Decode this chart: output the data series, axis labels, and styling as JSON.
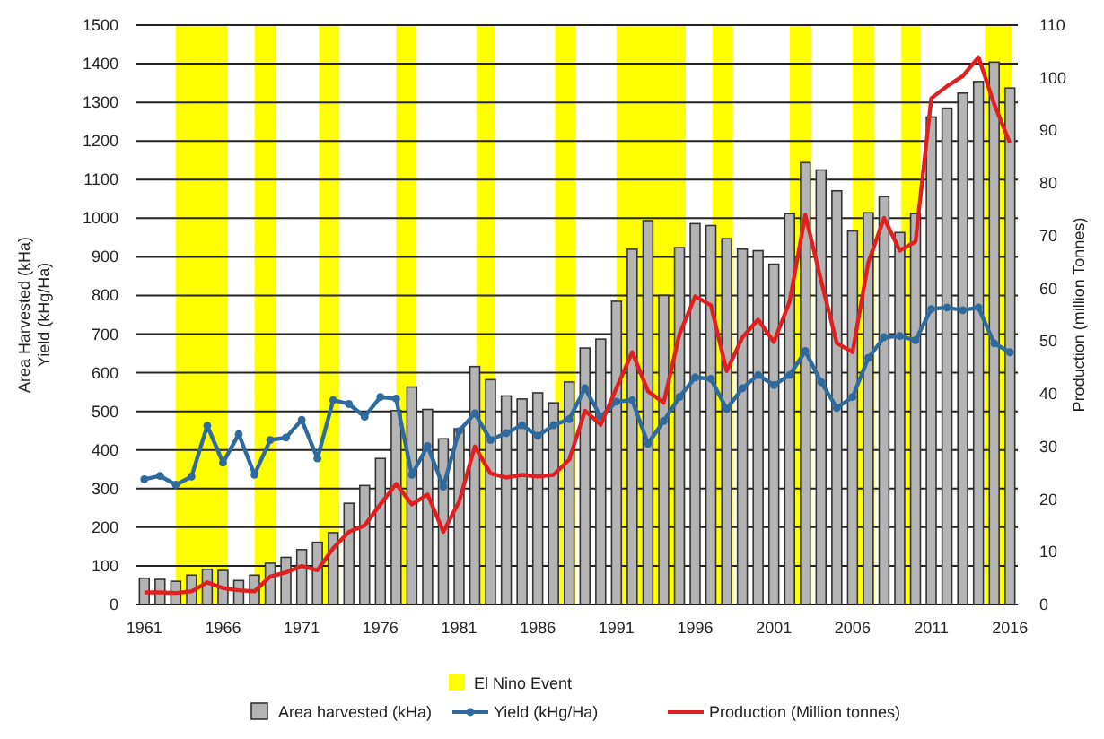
{
  "chart_data": {
    "type": "bar",
    "ylabel": "Area Harvested (kHa)\nYield (kHg/Ha)",
    "y2label": "Production (million Tonnes)",
    "x": [
      1961,
      1962,
      1963,
      1964,
      1965,
      1966,
      1967,
      1968,
      1969,
      1970,
      1971,
      1972,
      1973,
      1974,
      1975,
      1976,
      1977,
      1978,
      1979,
      1980,
      1981,
      1982,
      1983,
      1984,
      1985,
      1986,
      1987,
      1988,
      1989,
      1990,
      1991,
      1992,
      1993,
      1994,
      1995,
      1996,
      1997,
      1998,
      1999,
      2000,
      2001,
      2002,
      2003,
      2004,
      2005,
      2006,
      2007,
      2008,
      2009,
      2010,
      2011,
      2012,
      2013,
      2014,
      2015,
      2016
    ],
    "xlim": [
      1960.5,
      2016.5
    ],
    "xticks": [
      1961,
      1966,
      1971,
      1976,
      1981,
      1986,
      1991,
      1996,
      2001,
      2006,
      2011,
      2016
    ],
    "ylim": [
      0,
      1500
    ],
    "yticks": [
      0,
      100,
      200,
      300,
      400,
      500,
      600,
      700,
      800,
      900,
      1000,
      1100,
      1200,
      1300,
      1400,
      1500
    ],
    "y2lim": [
      0,
      110
    ],
    "y2ticks": [
      0,
      10,
      20,
      30,
      40,
      50,
      60,
      70,
      80,
      90,
      100,
      110
    ],
    "grid": "y",
    "legend": "bottom",
    "series": [
      {
        "name": "Area harvested (kHa)",
        "color": "#b4b4b4",
        "values": [
          68,
          65,
          60,
          76,
          91,
          88,
          62,
          76,
          107,
          122,
          142,
          161,
          186,
          262,
          308,
          378,
          502,
          563,
          505,
          429,
          455,
          616,
          582,
          540,
          532,
          548,
          522,
          576,
          664,
          687,
          785,
          920,
          994,
          800,
          924,
          986,
          981,
          947,
          920,
          916,
          881,
          1012,
          1144,
          1125,
          1071,
          967,
          1014,
          1056,
          963,
          1012,
          1262,
          1285,
          1324,
          1354,
          1404,
          1337
        ]
      },
      {
        "name": "Yield (kHg/Ha)",
        "type": "line",
        "marker": "circle",
        "color": "#2e6a9e",
        "values": [
          324,
          333,
          310,
          331,
          463,
          367,
          441,
          336,
          426,
          432,
          478,
          378,
          529,
          519,
          486,
          537,
          533,
          336,
          410,
          305,
          449,
          495,
          426,
          444,
          464,
          437,
          464,
          480,
          560,
          486,
          525,
          529,
          416,
          475,
          537,
          588,
          584,
          506,
          560,
          594,
          568,
          594,
          656,
          576,
          509,
          537,
          638,
          692,
          695,
          684,
          765,
          769,
          762,
          769,
          676,
          653
        ]
      },
      {
        "name": "Production (Million tonnes)",
        "type": "line",
        "axis": "y2",
        "color": "#e02020",
        "values": [
          2.3,
          2.3,
          2.2,
          2.5,
          4.2,
          3.1,
          2.7,
          2.5,
          5.3,
          6.1,
          7.3,
          6.5,
          10.7,
          13.8,
          15,
          19,
          22.9,
          19,
          20.9,
          13.8,
          19.5,
          30,
          24.9,
          24.1,
          24.6,
          24.3,
          24.6,
          27.5,
          36.8,
          34.1,
          41.1,
          47.9,
          40.5,
          38.3,
          51.3,
          58.5,
          56.8,
          44.3,
          50.7,
          54.1,
          49.8,
          57.5,
          74,
          61.5,
          49.6,
          47.9,
          64.9,
          73.4,
          67.2,
          68.9,
          96.1,
          98.4,
          100.3,
          103.9,
          95,
          87.6
        ]
      }
    ],
    "bands": [
      {
        "axis": "x",
        "from": 1963,
        "to": 1966.3,
        "color": "#ffff00",
        "label": "El Nino Event"
      },
      {
        "axis": "x",
        "from": 1968,
        "to": 1969.4,
        "color": "#ffff00"
      },
      {
        "axis": "x",
        "from": 1972.1,
        "to": 1973.4,
        "color": "#ffff00"
      },
      {
        "axis": "x",
        "from": 1977,
        "to": 1978.3,
        "color": "#ffff00"
      },
      {
        "axis": "x",
        "from": 1982.1,
        "to": 1983.3,
        "color": "#ffff00"
      },
      {
        "axis": "x",
        "from": 1987.1,
        "to": 1988.4,
        "color": "#ffff00"
      },
      {
        "axis": "x",
        "from": 1991,
        "to": 1995.4,
        "color": "#ffff00"
      },
      {
        "axis": "x",
        "from": 1997.1,
        "to": 1998.4,
        "color": "#ffff00"
      },
      {
        "axis": "x",
        "from": 2002,
        "to": 2003.4,
        "color": "#ffff00"
      },
      {
        "axis": "x",
        "from": 2006,
        "to": 2007.4,
        "color": "#ffff00"
      },
      {
        "axis": "x",
        "from": 2009.1,
        "to": 2010.3,
        "color": "#ffff00"
      },
      {
        "axis": "x",
        "from": 2014.4,
        "to": 2016.1,
        "color": "#ffff00"
      }
    ]
  }
}
